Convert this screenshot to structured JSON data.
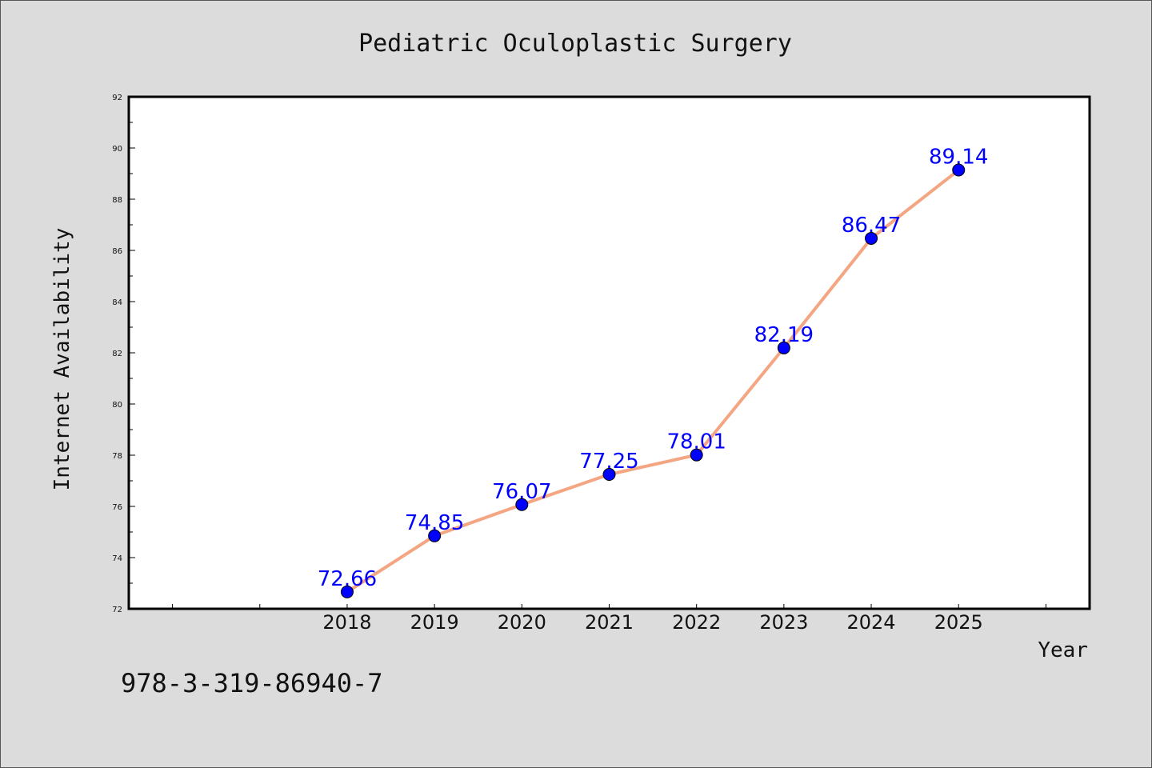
{
  "chart_data": {
    "type": "line",
    "title": "Pediatric Oculoplastic Surgery",
    "xlabel": "Year",
    "ylabel": "Internet Availability",
    "categories": [
      "2018",
      "2019",
      "2020",
      "2021",
      "2022",
      "2023",
      "2024",
      "2025"
    ],
    "values": [
      72.66,
      74.85,
      76.07,
      77.25,
      78.01,
      82.19,
      86.47,
      89.14
    ],
    "data_labels": [
      "72.66",
      "74.85",
      "76.07",
      "77.25",
      "78.01",
      "82.19",
      "86.47",
      "89.14"
    ],
    "ylim": [
      72,
      92
    ],
    "yticks": [
      72,
      74,
      76,
      78,
      80,
      82,
      84,
      86,
      88,
      90,
      92
    ],
    "xlim": [
      2015.5,
      2026.5
    ],
    "grid": false,
    "legend": "none",
    "line_color": "#f4a582",
    "marker_color": "#0000ff",
    "label_color": "#0000ff"
  },
  "footer": {
    "isbn": "978-3-319-86940-7"
  }
}
